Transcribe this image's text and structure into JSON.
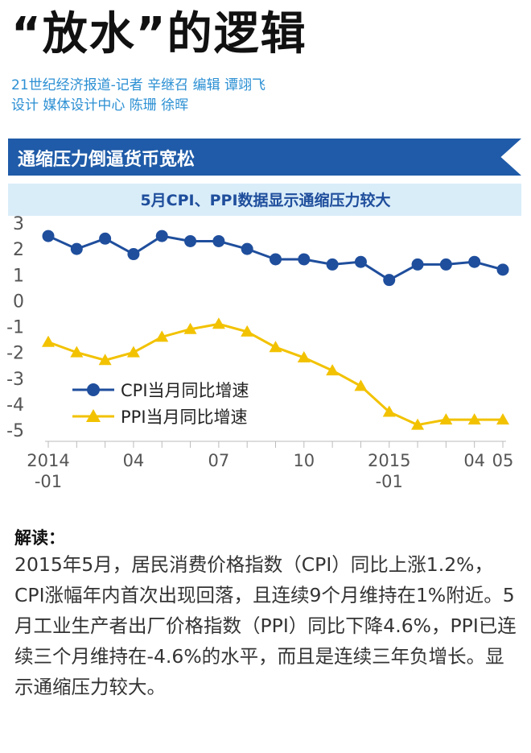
{
  "header": {
    "headline": "“放水”的逻辑",
    "byline": "21世纪经济报道-记者  辛继召    编辑  谭翊飞",
    "design": "设计 媒体设计中心 陈珊 徐晖"
  },
  "section": {
    "title": "通缩压力倒逼货币宽松"
  },
  "chart_data": {
    "type": "line",
    "title": "5月CPI、PPI数据显示通缩压力较大",
    "ylim": [
      -5,
      3
    ],
    "yticks": [
      3,
      2,
      1,
      0,
      -1,
      -2,
      -3,
      -4,
      -5
    ],
    "x_labels": [
      {
        "index": 0,
        "lines": [
          "2014",
          "-01"
        ]
      },
      {
        "index": 3,
        "lines": [
          "04"
        ]
      },
      {
        "index": 6,
        "lines": [
          "07"
        ]
      },
      {
        "index": 9,
        "lines": [
          "10"
        ]
      },
      {
        "index": 12,
        "lines": [
          "2015",
          "-01"
        ]
      },
      {
        "index": 15,
        "lines": [
          "04"
        ]
      },
      {
        "index": 16,
        "lines": [
          "05"
        ]
      }
    ],
    "x": [
      "2014-01",
      "2014-02",
      "2014-03",
      "2014-04",
      "2014-05",
      "2014-06",
      "2014-07",
      "2014-08",
      "2014-09",
      "2014-10",
      "2014-11",
      "2014-12",
      "2015-01",
      "2015-02",
      "2015-03",
      "2015-04",
      "2015-05"
    ],
    "series": [
      {
        "name": "CPI当月同比增速",
        "color": "#1f4e9c",
        "marker": "circle",
        "values": [
          2.5,
          2.0,
          2.4,
          1.8,
          2.5,
          2.3,
          2.3,
          2.0,
          1.6,
          1.6,
          1.4,
          1.5,
          0.8,
          1.4,
          1.4,
          1.5,
          1.2
        ]
      },
      {
        "name": "PPI当月同比增速",
        "color": "#f2c200",
        "marker": "triangle",
        "values": [
          -1.6,
          -2.0,
          -2.3,
          -2.0,
          -1.4,
          -1.1,
          -0.9,
          -1.2,
          -1.8,
          -2.2,
          -2.7,
          -3.3,
          -4.3,
          -4.8,
          -4.6,
          -4.6,
          -4.6
        ]
      }
    ],
    "grid": false,
    "legend": "lower-left"
  },
  "explanation": {
    "label": "解读：",
    "text": "2015年5月，居民消费价格指数（CPI）同比上涨1.2%，CPI涨幅年内首次出现回落，且连续9个月维持在1%附近。5月工业生产者出厂价格指数（PPI）同比下降4.6%，PPI已连续三个月维持在-4.6%的水平，而且是连续三年负增长。显示通缩压力较大。"
  }
}
